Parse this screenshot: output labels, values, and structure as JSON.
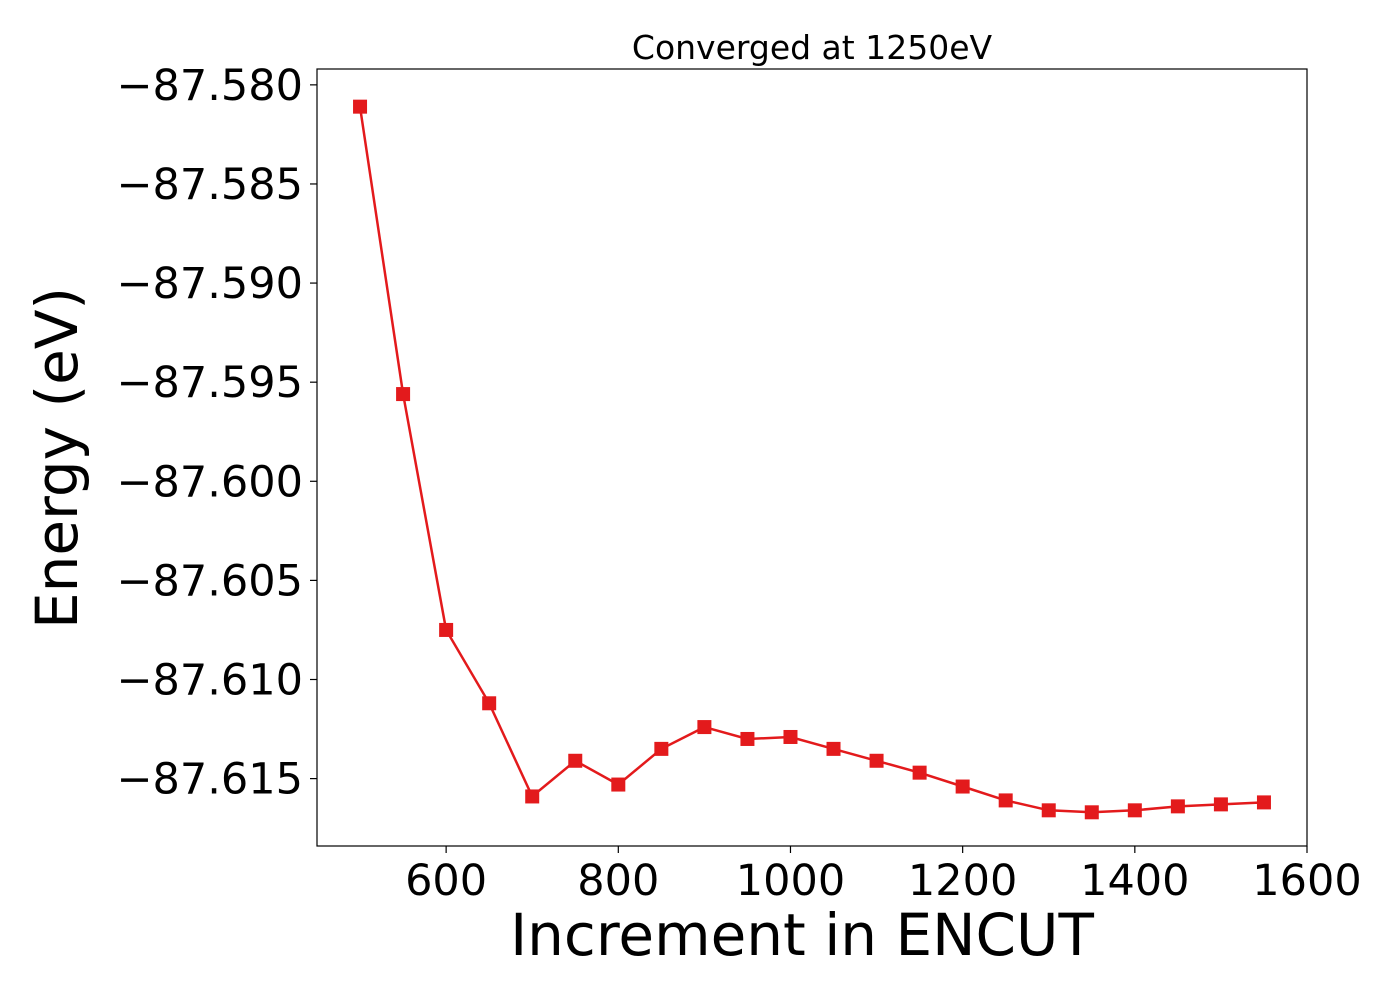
{
  "chart_data": {
    "type": "line",
    "title": "Converged at 1250eV",
    "xlabel": "Increment in ENCUT",
    "ylabel": "Energy (eV)",
    "xlim": [
      450,
      1600
    ],
    "ylim": [
      -87.6184,
      -87.5792
    ],
    "xticks": [
      600,
      800,
      1000,
      1200,
      1400,
      1600
    ],
    "xtick_labels": [
      "600",
      "800",
      "1000",
      "1200",
      "1400",
      "1600"
    ],
    "yticks": [
      -87.58,
      -87.585,
      -87.59,
      -87.595,
      -87.6,
      -87.605,
      -87.61,
      -87.615
    ],
    "ytick_labels": [
      "−87.580",
      "−87.585",
      "−87.590",
      "−87.595",
      "−87.600",
      "−87.605",
      "−87.610",
      "−87.615"
    ],
    "grid": false,
    "series": [
      {
        "color": "#e31a1c",
        "marker": "square",
        "x": [
          500,
          550,
          600,
          650,
          700,
          750,
          800,
          850,
          900,
          950,
          1000,
          1050,
          1100,
          1150,
          1200,
          1250,
          1300,
          1350,
          1400,
          1450,
          1500,
          1550
        ],
        "y": [
          -87.5811,
          -87.5956,
          -87.6075,
          -87.6112,
          -87.6159,
          -87.6141,
          -87.6153,
          -87.6135,
          -87.6124,
          -87.613,
          -87.6129,
          -87.6135,
          -87.6141,
          -87.6147,
          -87.6154,
          -87.6161,
          -87.6166,
          -87.6167,
          -87.6166,
          -87.6164,
          -87.6163,
          -87.6162
        ]
      }
    ]
  }
}
